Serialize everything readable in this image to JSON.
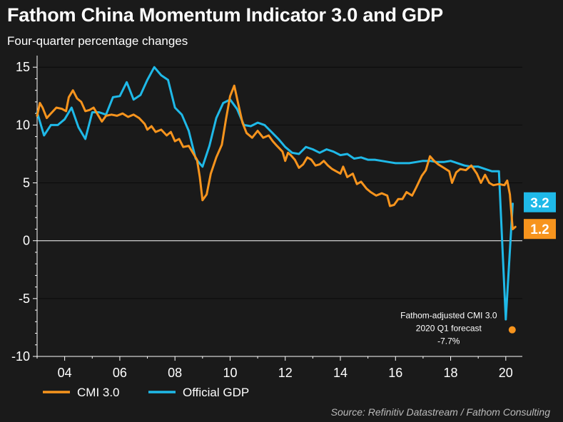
{
  "chart_data": {
    "type": "line",
    "title": "Fathom China Momentum Indicator 3.0 and GDP",
    "subtitle": "Four-quarter percentage changes",
    "xlabel": "",
    "ylabel": "",
    "x_tick_labels": [
      "04",
      "06",
      "08",
      "10",
      "12",
      "14",
      "16",
      "18",
      "20"
    ],
    "x_tick_values": [
      2004,
      2006,
      2008,
      2010,
      2012,
      2014,
      2016,
      2018,
      2020
    ],
    "xlim": [
      2003.0,
      2020.6
    ],
    "ylim": [
      -10,
      16
    ],
    "y_tick_labels": [
      "15",
      "10",
      "5",
      "0",
      "-5",
      "-10"
    ],
    "y_tick_values": [
      15,
      10,
      5,
      0,
      -5,
      -10
    ],
    "grid": "horizontal",
    "legend_position": "bottom-left",
    "series": [
      {
        "name": "CMI 3.0",
        "color": "#f7941d",
        "points": [
          [
            2003.0,
            10.8
          ],
          [
            2003.1,
            11.9
          ],
          [
            2003.2,
            11.5
          ],
          [
            2003.35,
            10.6
          ],
          [
            2003.5,
            11.0
          ],
          [
            2003.7,
            11.5
          ],
          [
            2003.9,
            11.4
          ],
          [
            2004.05,
            11.2
          ],
          [
            2004.15,
            12.4
          ],
          [
            2004.3,
            13.0
          ],
          [
            2004.45,
            12.3
          ],
          [
            2004.6,
            12.0
          ],
          [
            2004.75,
            11.2
          ],
          [
            2004.9,
            11.3
          ],
          [
            2005.05,
            11.5
          ],
          [
            2005.2,
            10.9
          ],
          [
            2005.35,
            10.3
          ],
          [
            2005.5,
            10.8
          ],
          [
            2005.7,
            10.9
          ],
          [
            2005.9,
            10.8
          ],
          [
            2006.1,
            11.0
          ],
          [
            2006.3,
            10.7
          ],
          [
            2006.5,
            10.9
          ],
          [
            2006.7,
            10.6
          ],
          [
            2006.9,
            10.1
          ],
          [
            2007.0,
            9.6
          ],
          [
            2007.15,
            9.9
          ],
          [
            2007.3,
            9.4
          ],
          [
            2007.5,
            9.6
          ],
          [
            2007.7,
            9.1
          ],
          [
            2007.85,
            9.4
          ],
          [
            2008.0,
            8.6
          ],
          [
            2008.15,
            8.8
          ],
          [
            2008.3,
            8.1
          ],
          [
            2008.5,
            8.2
          ],
          [
            2008.65,
            7.6
          ],
          [
            2008.8,
            7.0
          ],
          [
            2008.9,
            5.5
          ],
          [
            2009.0,
            3.5
          ],
          [
            2009.15,
            4.0
          ],
          [
            2009.3,
            5.8
          ],
          [
            2009.5,
            7.2
          ],
          [
            2009.7,
            8.3
          ],
          [
            2009.85,
            10.5
          ],
          [
            2010.0,
            12.5
          ],
          [
            2010.15,
            13.4
          ],
          [
            2010.3,
            11.8
          ],
          [
            2010.45,
            10.2
          ],
          [
            2010.6,
            9.3
          ],
          [
            2010.8,
            8.9
          ],
          [
            2011.0,
            9.5
          ],
          [
            2011.2,
            8.9
          ],
          [
            2011.4,
            9.1
          ],
          [
            2011.55,
            8.6
          ],
          [
            2011.7,
            8.2
          ],
          [
            2011.9,
            7.7
          ],
          [
            2012.0,
            6.9
          ],
          [
            2012.1,
            7.6
          ],
          [
            2012.2,
            7.4
          ],
          [
            2012.35,
            7.0
          ],
          [
            2012.5,
            6.3
          ],
          [
            2012.65,
            6.6
          ],
          [
            2012.8,
            7.2
          ],
          [
            2012.95,
            7.0
          ],
          [
            2013.1,
            6.5
          ],
          [
            2013.25,
            6.6
          ],
          [
            2013.4,
            6.9
          ],
          [
            2013.55,
            6.5
          ],
          [
            2013.7,
            6.2
          ],
          [
            2013.85,
            6.0
          ],
          [
            2014.0,
            5.8
          ],
          [
            2014.1,
            6.4
          ],
          [
            2014.25,
            5.5
          ],
          [
            2014.45,
            5.8
          ],
          [
            2014.6,
            4.9
          ],
          [
            2014.75,
            5.1
          ],
          [
            2014.95,
            4.5
          ],
          [
            2015.1,
            4.2
          ],
          [
            2015.3,
            3.9
          ],
          [
            2015.5,
            4.1
          ],
          [
            2015.7,
            3.9
          ],
          [
            2015.8,
            3.0
          ],
          [
            2015.95,
            3.1
          ],
          [
            2016.1,
            3.6
          ],
          [
            2016.25,
            3.6
          ],
          [
            2016.4,
            4.2
          ],
          [
            2016.6,
            3.9
          ],
          [
            2016.75,
            4.6
          ],
          [
            2016.95,
            5.6
          ],
          [
            2017.1,
            6.1
          ],
          [
            2017.25,
            7.3
          ],
          [
            2017.4,
            6.9
          ],
          [
            2017.55,
            6.6
          ],
          [
            2017.75,
            6.3
          ],
          [
            2017.95,
            6.0
          ],
          [
            2018.05,
            5.0
          ],
          [
            2018.2,
            5.9
          ],
          [
            2018.35,
            6.2
          ],
          [
            2018.55,
            6.1
          ],
          [
            2018.75,
            6.5
          ],
          [
            2018.95,
            5.8
          ],
          [
            2019.1,
            5.0
          ],
          [
            2019.25,
            5.7
          ],
          [
            2019.4,
            5.0
          ],
          [
            2019.55,
            4.8
          ],
          [
            2019.75,
            4.9
          ],
          [
            2019.95,
            4.8
          ],
          [
            2020.05,
            5.2
          ],
          [
            2020.15,
            4.0
          ],
          [
            2020.25,
            1.0
          ],
          [
            2020.35,
            1.2
          ]
        ]
      },
      {
        "name": "Official GDP",
        "color": "#1fb9e8",
        "points": [
          [
            2003.0,
            11.1
          ],
          [
            2003.25,
            9.1
          ],
          [
            2003.5,
            10.0
          ],
          [
            2003.75,
            10.0
          ],
          [
            2004.0,
            10.5
          ],
          [
            2004.25,
            11.5
          ],
          [
            2004.5,
            9.8
          ],
          [
            2004.75,
            8.8
          ],
          [
            2005.0,
            11.1
          ],
          [
            2005.25,
            11.1
          ],
          [
            2005.5,
            10.9
          ],
          [
            2005.75,
            12.4
          ],
          [
            2006.0,
            12.5
          ],
          [
            2006.25,
            13.7
          ],
          [
            2006.5,
            12.2
          ],
          [
            2006.75,
            12.6
          ],
          [
            2007.0,
            13.9
          ],
          [
            2007.25,
            15.0
          ],
          [
            2007.5,
            14.3
          ],
          [
            2007.75,
            13.9
          ],
          [
            2008.0,
            11.5
          ],
          [
            2008.25,
            10.9
          ],
          [
            2008.5,
            9.5
          ],
          [
            2008.75,
            7.1
          ],
          [
            2009.0,
            6.4
          ],
          [
            2009.25,
            8.2
          ],
          [
            2009.5,
            10.6
          ],
          [
            2009.75,
            11.9
          ],
          [
            2010.0,
            12.2
          ],
          [
            2010.25,
            11.4
          ],
          [
            2010.5,
            10.0
          ],
          [
            2010.75,
            9.9
          ],
          [
            2011.0,
            10.2
          ],
          [
            2011.25,
            10.0
          ],
          [
            2011.5,
            9.4
          ],
          [
            2011.75,
            8.8
          ],
          [
            2012.0,
            8.1
          ],
          [
            2012.25,
            7.6
          ],
          [
            2012.5,
            7.5
          ],
          [
            2012.75,
            8.1
          ],
          [
            2013.0,
            7.9
          ],
          [
            2013.25,
            7.6
          ],
          [
            2013.5,
            7.9
          ],
          [
            2013.75,
            7.7
          ],
          [
            2014.0,
            7.4
          ],
          [
            2014.25,
            7.5
          ],
          [
            2014.5,
            7.1
          ],
          [
            2014.75,
            7.2
          ],
          [
            2015.0,
            7.0
          ],
          [
            2015.25,
            7.0
          ],
          [
            2015.5,
            6.9
          ],
          [
            2015.75,
            6.8
          ],
          [
            2016.0,
            6.7
          ],
          [
            2016.25,
            6.7
          ],
          [
            2016.5,
            6.7
          ],
          [
            2016.75,
            6.8
          ],
          [
            2017.0,
            6.9
          ],
          [
            2017.25,
            6.9
          ],
          [
            2017.5,
            6.8
          ],
          [
            2017.75,
            6.8
          ],
          [
            2018.0,
            6.9
          ],
          [
            2018.25,
            6.7
          ],
          [
            2018.5,
            6.5
          ],
          [
            2018.75,
            6.4
          ],
          [
            2019.0,
            6.4
          ],
          [
            2019.25,
            6.2
          ],
          [
            2019.5,
            6.0
          ],
          [
            2019.75,
            6.0
          ],
          [
            2020.0,
            -6.8
          ],
          [
            2020.25,
            3.2
          ]
        ]
      }
    ],
    "end_labels": [
      {
        "series": "Official GDP",
        "value": 3.2,
        "text": "3.2",
        "color": "#1fb9e8"
      },
      {
        "series": "CMI 3.0",
        "value": 1.2,
        "text": "1.2",
        "color": "#f7941d"
      }
    ],
    "annotation": {
      "lines": [
        "Fathom-adjusted CMI 3.0",
        "2020 Q1 forecast",
        "-7.7%"
      ],
      "point": {
        "x": 2020.0,
        "y": -7.7
      },
      "color": "#f7941d"
    },
    "source": "Source: Refinitiv Datastream / Fathom Consulting"
  }
}
